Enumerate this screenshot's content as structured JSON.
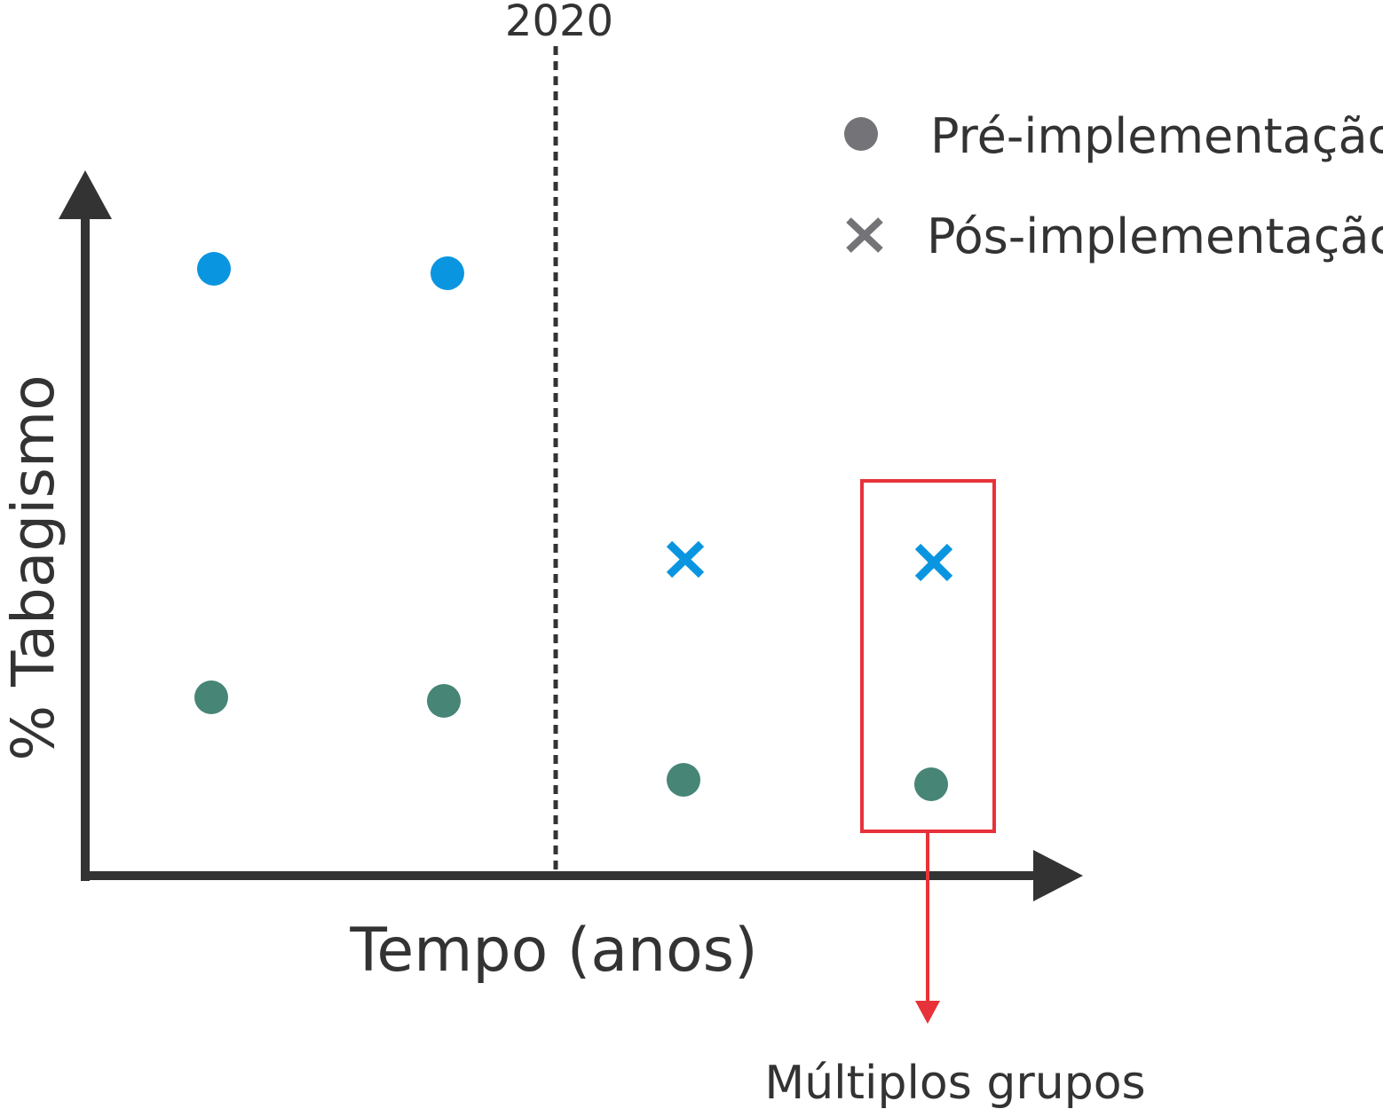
{
  "colors": {
    "axis": "#333333",
    "text": "#333333",
    "legend_marker": "#747478",
    "group_blue": "#0a95e0",
    "group_green": "#478577",
    "highlight": "#e8323a",
    "divider": "#333333"
  },
  "axes": {
    "y_label": "% Tabagismo",
    "x_label": "Tempo (anos)"
  },
  "divider": {
    "label": "2020",
    "style": "dashed"
  },
  "legend": {
    "items": [
      {
        "marker": "circle",
        "label": "Pré-implementação"
      },
      {
        "marker": "x",
        "label": "Pós-implementação"
      }
    ]
  },
  "points": [
    {
      "time_slot": 1,
      "group": "blue",
      "period": "pre",
      "marker": "circle"
    },
    {
      "time_slot": 2,
      "group": "blue",
      "period": "pre",
      "marker": "circle"
    },
    {
      "time_slot": 3,
      "group": "blue",
      "period": "post",
      "marker": "x"
    },
    {
      "time_slot": 4,
      "group": "blue",
      "period": "post",
      "marker": "x"
    },
    {
      "time_slot": 1,
      "group": "green",
      "period": "pre",
      "marker": "circle"
    },
    {
      "time_slot": 2,
      "group": "green",
      "period": "pre",
      "marker": "circle"
    },
    {
      "time_slot": 3,
      "group": "green",
      "period": "post",
      "marker": "circle"
    },
    {
      "time_slot": 4,
      "group": "green",
      "period": "post",
      "marker": "circle"
    }
  ],
  "callout": {
    "label": "Múltiplos grupos",
    "target_time_slot": 4
  }
}
